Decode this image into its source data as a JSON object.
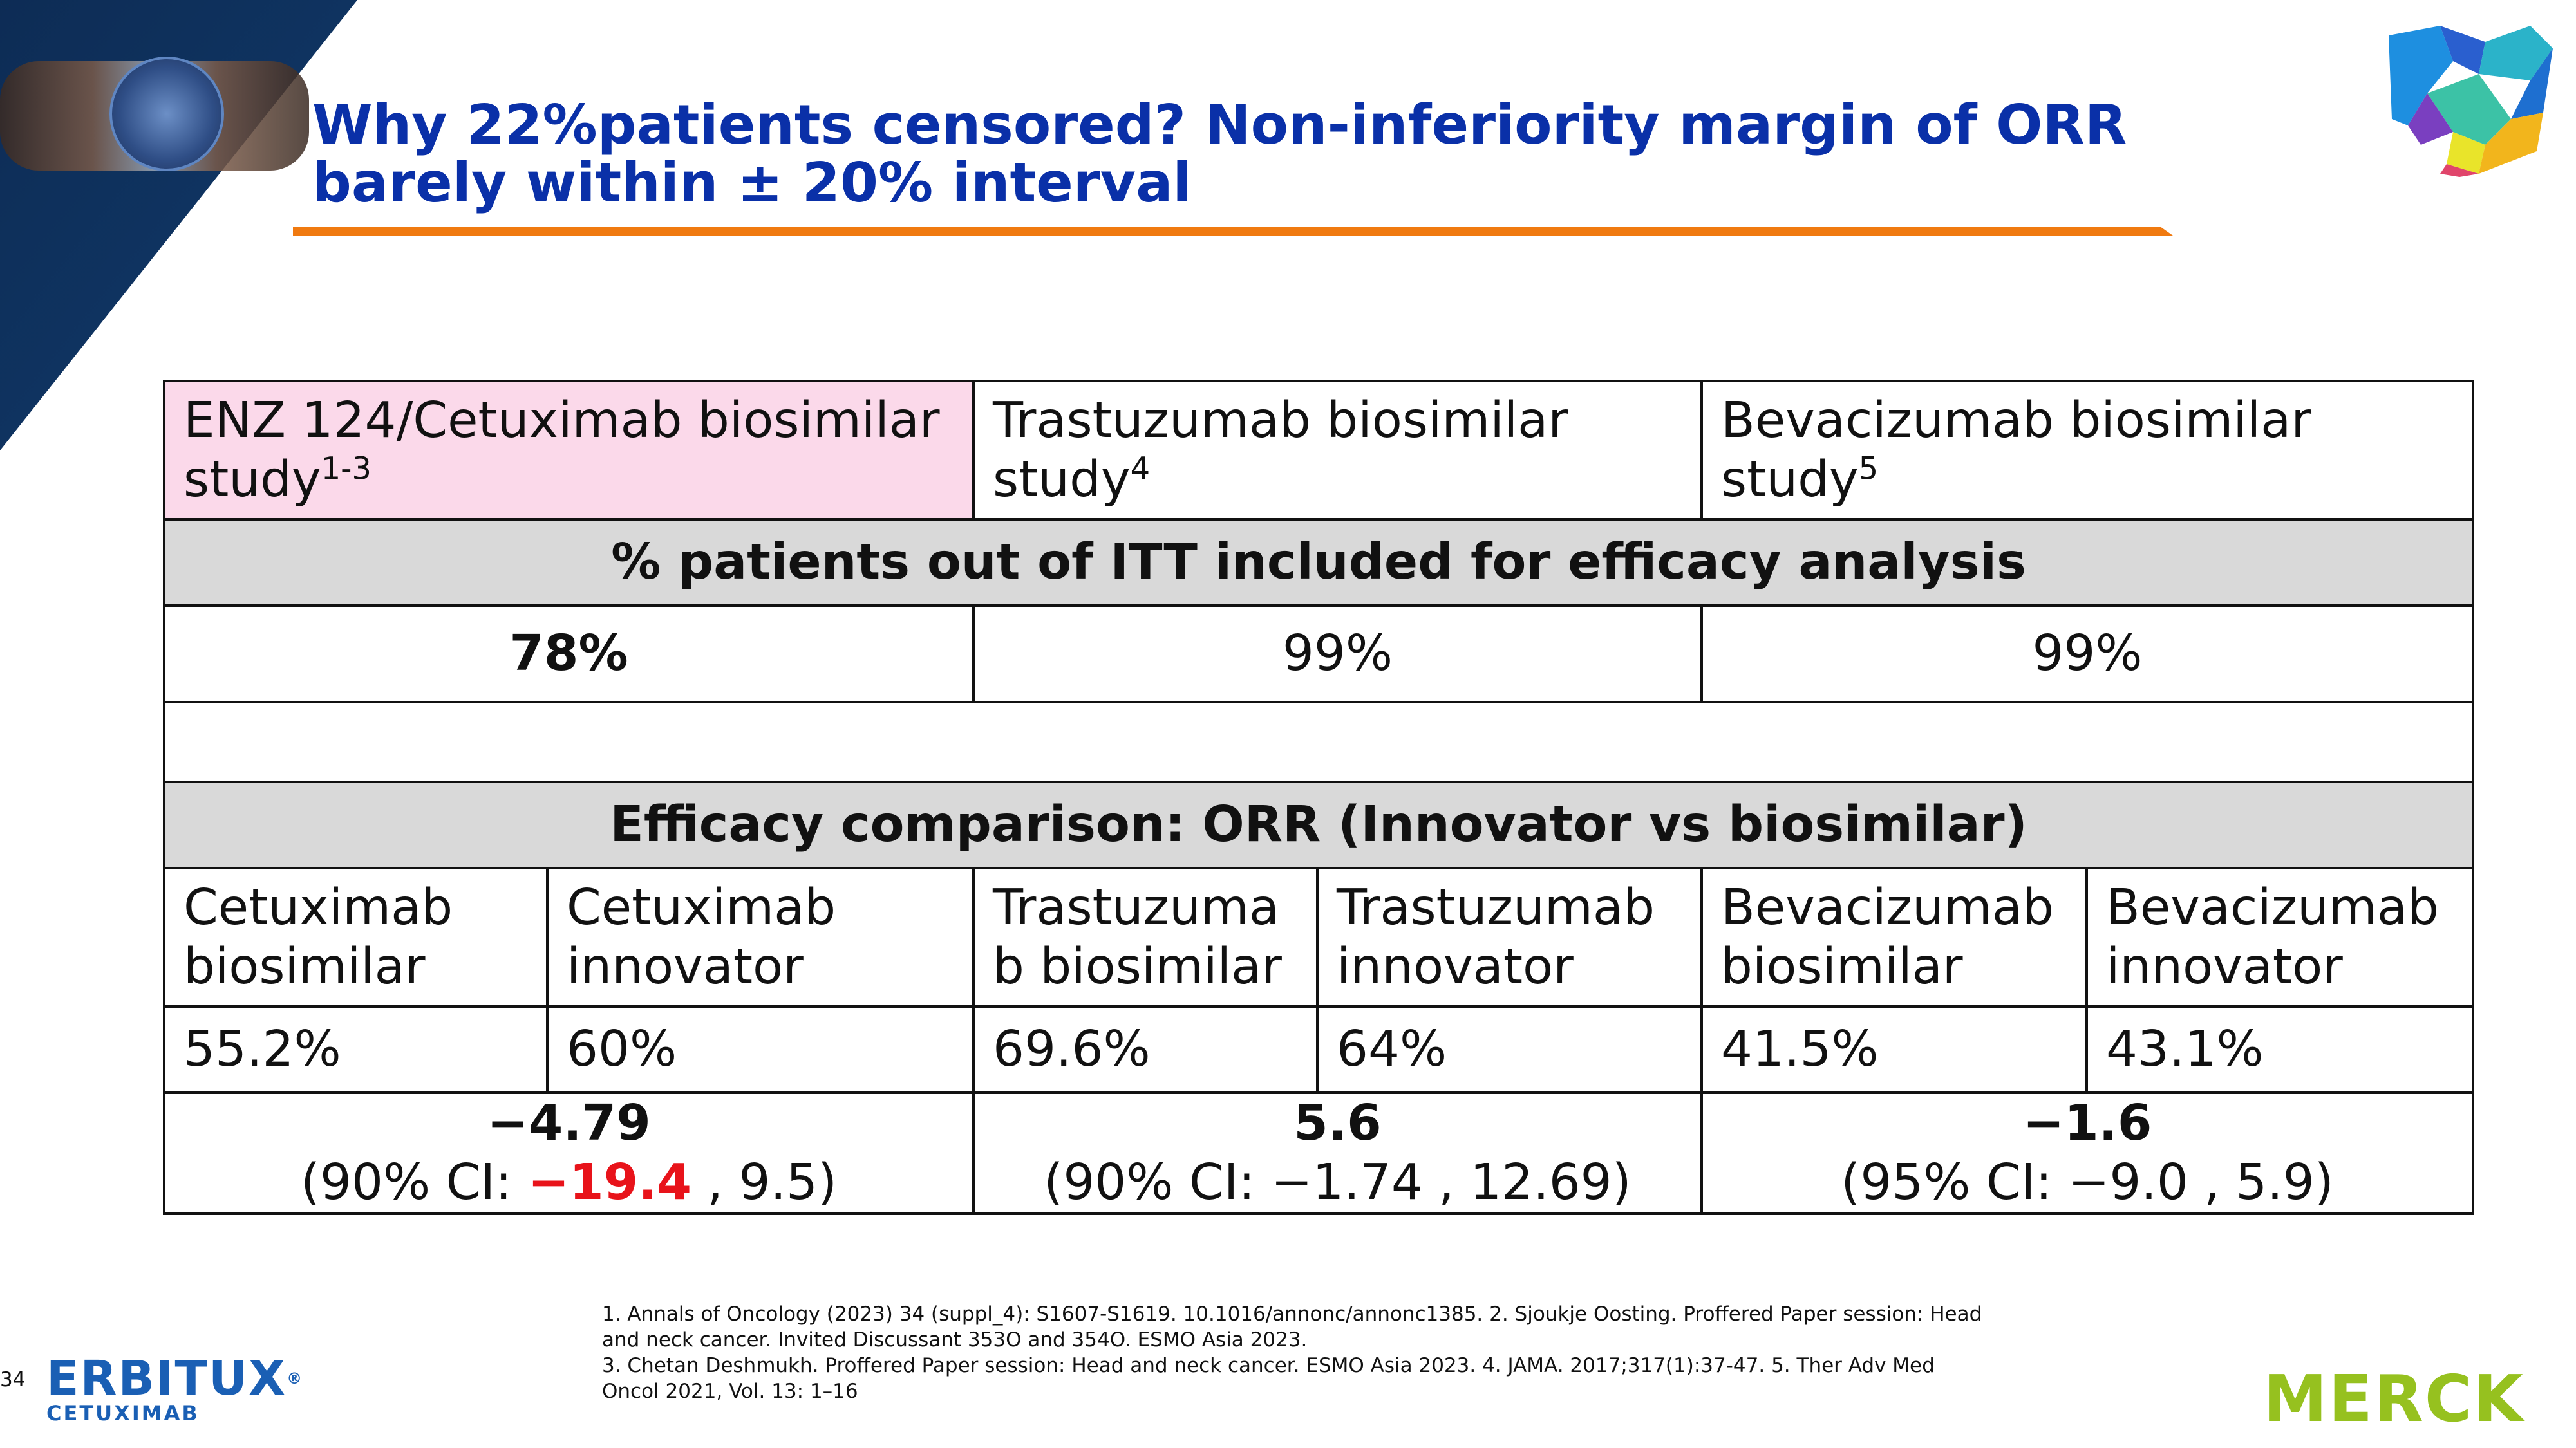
{
  "slide": {
    "title_line1": "Why 22%patients censored? Non-inferiority margin of ORR",
    "title_line2": "barely within ± 20% interval",
    "page_number": "34"
  },
  "colors": {
    "title": "#0a30a8",
    "rule": "#f07a10",
    "highlight_cell": "#fbd9ea",
    "band": "#d9d9d9",
    "emphasis_red": "#e8131a",
    "erbitux_blue": "#1a5fb4",
    "merck_green": "#96c11f"
  },
  "table": {
    "headers": [
      {
        "text": "ENZ 124/Cetuximab biosimilar study",
        "sup": "1-3"
      },
      {
        "text": "Trastuzumab biosimilar study",
        "sup": "4"
      },
      {
        "text": "Bevacizumab biosimilar study",
        "sup": "5"
      }
    ],
    "band1": "% patients out of ITT included for efficacy analysis",
    "itt": [
      "78%",
      "99%",
      "99%"
    ],
    "band2": "Efficacy comparison: ORR (Innovator vs biosimilar)",
    "arm_labels": [
      "Cetuximab biosimilar",
      "Cetuximab innovator",
      "Trastuzuma b biosimilar",
      "Trastuzumab innovator",
      "Bevacizumab biosimilar",
      "Bevacizumab innovator"
    ],
    "orr_values": [
      "55.2%",
      "60%",
      "69.6%",
      "64%",
      "41.5%",
      "43.1%"
    ],
    "differences": [
      {
        "estimate": "−4.79",
        "ci_prefix": "(90% CI: ",
        "ci_low": "−19.4",
        "ci_rest": " , 9.5)"
      },
      {
        "estimate": "5.6",
        "ci_prefix": "(90% CI: ",
        "ci_low": "−1.74",
        "ci_rest": " , 12.69)"
      },
      {
        "estimate": "−1.6",
        "ci_prefix": "(95% CI: ",
        "ci_low": "−9.0",
        "ci_rest": " , 5.9)"
      }
    ]
  },
  "footnotes": {
    "line1": "1. Annals of Oncology (2023) 34 (suppl_4): S1607-S1619. 10.1016/annonc/annonc1385. 2. Sjoukje Oosting. Proffered Paper session: Head",
    "line2": "and neck cancer. Invited Discussant 353O and 354O. ESMO Asia 2023.",
    "line3": "3. Chetan Deshmukh. Proffered Paper session: Head and neck cancer. ESMO Asia 2023. 4. JAMA. 2017;317(1):37-47. 5. Ther Adv Med",
    "line4": "Oncol 2021, Vol. 13: 1–16"
  },
  "logos": {
    "erbitux_word": "ERBITUX",
    "erbitux_registered": "®",
    "erbitux_sub": "CETUXIMAB",
    "merck_word": "MERCK"
  },
  "icons": {
    "top_right": "colorful-abstract-logo-icon",
    "top_left": "handshake-globe-icon"
  }
}
